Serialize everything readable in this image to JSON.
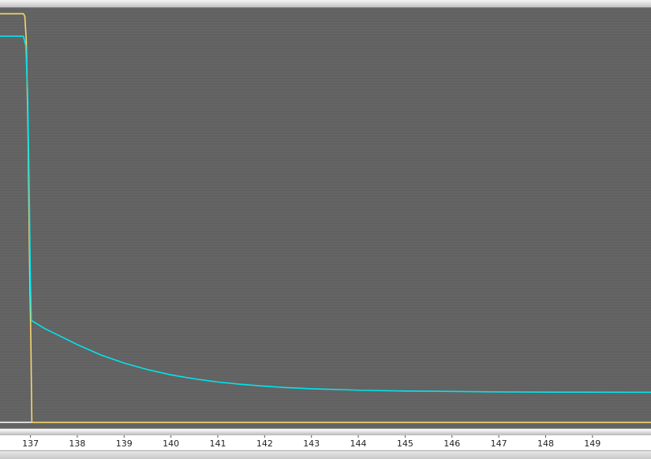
{
  "chart_data": {
    "type": "line",
    "title": "",
    "xlabel": "",
    "ylabel": "",
    "xlim": [
      136.35,
      150.25
    ],
    "ylim": [
      -1.0,
      1.0
    ],
    "grid": false,
    "x_ticks": [
      "137",
      "138",
      "139",
      "140",
      "141",
      "142",
      "143",
      "144",
      "145",
      "146",
      "147",
      "148",
      "149"
    ],
    "series": [
      {
        "color": "#f5d76e",
        "points": [
          [
            136.35,
            0.972
          ],
          [
            136.85,
            0.972
          ],
          [
            136.88,
            0.96
          ],
          [
            136.91,
            0.85
          ],
          [
            136.95,
            0.4
          ],
          [
            136.98,
            -0.2
          ],
          [
            137.01,
            -0.6
          ],
          [
            137.03,
            -0.972
          ],
          [
            150.25,
            -0.972
          ]
        ]
      },
      {
        "color": "#00e5ee",
        "points": [
          [
            136.35,
            0.865
          ],
          [
            136.85,
            0.865
          ],
          [
            136.9,
            0.82
          ],
          [
            136.94,
            0.6
          ],
          [
            136.97,
            0.2
          ],
          [
            137.0,
            -0.3
          ],
          [
            137.02,
            -0.487
          ],
          [
            137.3,
            -0.525
          ],
          [
            137.6,
            -0.558
          ],
          [
            138.0,
            -0.602
          ],
          [
            138.5,
            -0.651
          ],
          [
            139.0,
            -0.69
          ],
          [
            139.5,
            -0.721
          ],
          [
            140.0,
            -0.746
          ],
          [
            140.5,
            -0.765
          ],
          [
            141.0,
            -0.78
          ],
          [
            141.5,
            -0.791
          ],
          [
            142.0,
            -0.8
          ],
          [
            142.5,
            -0.807
          ],
          [
            143.0,
            -0.812
          ],
          [
            144.0,
            -0.819
          ],
          [
            145.0,
            -0.823
          ],
          [
            146.0,
            -0.825
          ],
          [
            147.0,
            -0.827
          ],
          [
            148.0,
            -0.828
          ],
          [
            150.25,
            -0.829
          ]
        ]
      }
    ],
    "baseline": {
      "color": "#ffffff",
      "x_range": [
        136.35,
        137.03
      ],
      "y": -0.972
    },
    "background": "#636363"
  }
}
